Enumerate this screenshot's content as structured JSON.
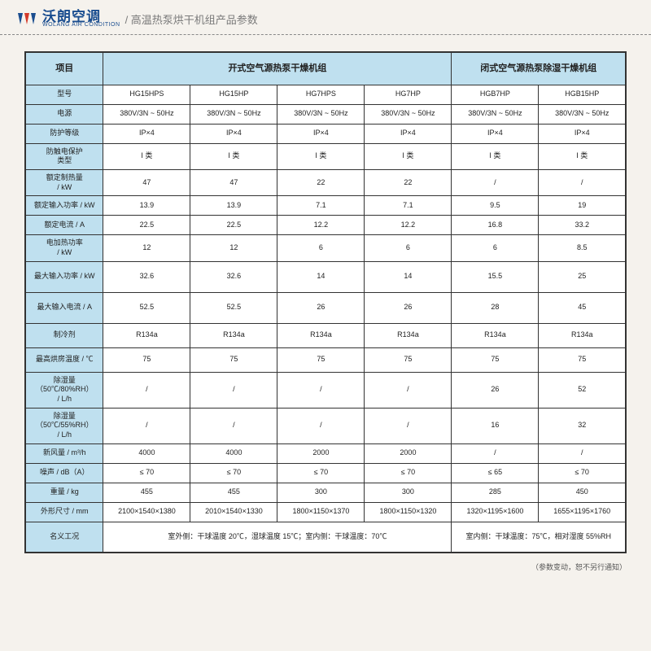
{
  "header": {
    "brand_cn": "沃朗空调",
    "brand_en": "WOLANG AIR CONDITION",
    "subtitle": "/ 高温热泵烘干机组产品参数"
  },
  "table": {
    "col_project": "项目",
    "group_open": "开式空气源热泵干燥机组",
    "group_closed": "闭式空气源热泵除湿干燥机组",
    "rows": [
      {
        "label": "型号",
        "cls": "short",
        "cells": [
          "HG15HPS",
          "HG15HP",
          "HG7HPS",
          "HG7HP",
          "HGB7HP",
          "HGB15HP"
        ]
      },
      {
        "label": "电源",
        "cls": "short",
        "cells": [
          "380V/3N ~ 50Hz",
          "380V/3N ~ 50Hz",
          "380V/3N ~ 50Hz",
          "380V/3N ~ 50Hz",
          "380V/3N ~ 50Hz",
          "380V/3N ~ 50Hz"
        ]
      },
      {
        "label": "防护等级",
        "cls": "short",
        "cells": [
          "IP×4",
          "IP×4",
          "IP×4",
          "IP×4",
          "IP×4",
          "IP×4"
        ]
      },
      {
        "label": "防触电保护\n类型",
        "cls": "med",
        "cells": [
          "I 类",
          "I 类",
          "I 类",
          "I 类",
          "I 类",
          "I 类"
        ]
      },
      {
        "label": "额定制热量\n/ kW",
        "cls": "med",
        "cells": [
          "47",
          "47",
          "22",
          "22",
          "/",
          "/"
        ]
      },
      {
        "label": "额定输入功率 / kW",
        "cls": "short",
        "cells": [
          "13.9",
          "13.9",
          "7.1",
          "7.1",
          "9.5",
          "19"
        ]
      },
      {
        "label": "额定电流 / A",
        "cls": "short",
        "cells": [
          "22.5",
          "22.5",
          "12.2",
          "12.2",
          "16.8",
          "33.2"
        ]
      },
      {
        "label": "电加热功率\n/ kW",
        "cls": "med",
        "cells": [
          "12",
          "12",
          "6",
          "6",
          "6",
          "8.5"
        ]
      },
      {
        "label": "最大输入功率 / kW",
        "cls": "tall",
        "cells": [
          "32.6",
          "32.6",
          "14",
          "14",
          "15.5",
          "25"
        ]
      },
      {
        "label": "最大输入电流 / A",
        "cls": "tall",
        "cells": [
          "52.5",
          "52.5",
          "26",
          "26",
          "28",
          "45"
        ]
      },
      {
        "label": "制冷剂",
        "cls": "med",
        "cells": [
          "R134a",
          "R134a",
          "R134a",
          "R134a",
          "R134a",
          "R134a"
        ]
      },
      {
        "label": "最高烘房温度 / ℃",
        "cls": "med",
        "cells": [
          "75",
          "75",
          "75",
          "75",
          "75",
          "75"
        ]
      },
      {
        "label": "除湿量\n（50℃/80%RH）\n/ L/h",
        "cls": "tall",
        "cells": [
          "/",
          "/",
          "/",
          "/",
          "26",
          "52"
        ]
      },
      {
        "label": "除湿量\n（50℃/55%RH）\n/ L/h",
        "cls": "tall",
        "cells": [
          "/",
          "/",
          "/",
          "/",
          "16",
          "32"
        ]
      },
      {
        "label": "新风量 / m³/h",
        "cls": "short",
        "cells": [
          "4000",
          "4000",
          "2000",
          "2000",
          "/",
          "/"
        ]
      },
      {
        "label": "噪声 / dB（A）",
        "cls": "short",
        "cells": [
          "≤ 70",
          "≤ 70",
          "≤ 70",
          "≤ 70",
          "≤ 65",
          "≤ 70"
        ]
      },
      {
        "label": "重量 / kg",
        "cls": "short",
        "cells": [
          "455",
          "455",
          "300",
          "300",
          "285",
          "450"
        ]
      },
      {
        "label": "外形尺寸 / mm",
        "cls": "short",
        "cells": [
          "2100×1540×1380",
          "2010×1540×1330",
          "1800×1150×1370",
          "1800×1150×1320",
          "1320×1195×1600",
          "1655×1195×1760"
        ]
      }
    ],
    "nominal_label": "名义工况",
    "nominal_open": "室外侧：干球温度 20℃，湿球温度 15℃；室内侧：干球温度：70℃",
    "nominal_closed": "室内侧：干球温度：75℃，相对湿度 55%RH"
  },
  "footnote": "（参数变动，恕不另行通知）",
  "colors": {
    "header_bg": "#bfe0ef",
    "page_bg": "#f5f2ed",
    "border": "#333333",
    "brand": "#1a4d8f"
  }
}
